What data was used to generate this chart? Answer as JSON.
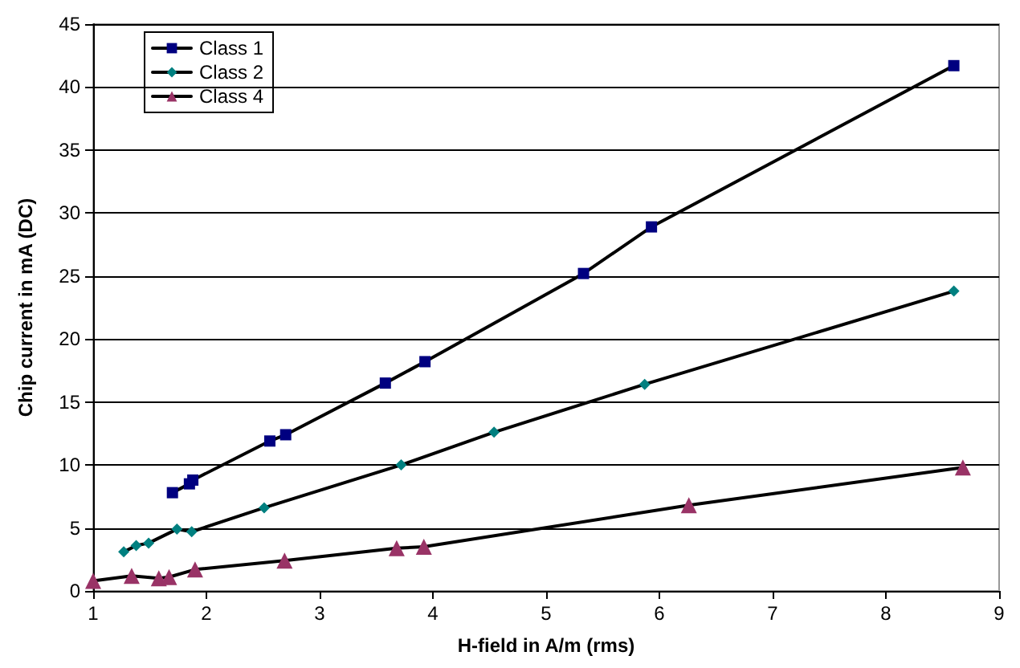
{
  "chart_data": {
    "type": "line",
    "xlabel": "H-field in A/m (rms)",
    "ylabel": "Chip current in mA (DC)",
    "xlim": [
      1,
      9
    ],
    "xticks": [
      1,
      2,
      3,
      4,
      5,
      6,
      7,
      8,
      9
    ],
    "ylim": [
      0,
      45
    ],
    "yticks": [
      0,
      5,
      10,
      15,
      20,
      25,
      30,
      35,
      40,
      45
    ],
    "grid": "y",
    "legend": "top left",
    "line_style": "solid",
    "series": [
      {
        "name": "Class 1",
        "color": "#000080",
        "marker": "square",
        "x": [
          1.7,
          1.85,
          1.88,
          2.56,
          2.7,
          3.58,
          3.93,
          5.33,
          5.93,
          8.6
        ],
        "values": [
          7.8,
          8.5,
          8.8,
          11.9,
          12.4,
          16.5,
          18.2,
          25.2,
          28.9,
          41.7
        ]
      },
      {
        "name": "Class 2",
        "color": "#008080",
        "marker": "diamond",
        "x": [
          1.27,
          1.38,
          1.49,
          1.74,
          1.87,
          2.51,
          3.72,
          4.54,
          5.87,
          8.6
        ],
        "values": [
          3.1,
          3.6,
          3.8,
          4.9,
          4.7,
          6.6,
          10.0,
          12.6,
          16.4,
          23.8
        ]
      },
      {
        "name": "Class 4",
        "color": "#993366",
        "marker": "triangle",
        "x": [
          1.0,
          1.34,
          1.58,
          1.67,
          1.9,
          2.69,
          3.68,
          3.92,
          6.26,
          8.68
        ],
        "values": [
          0.8,
          1.2,
          1.0,
          1.1,
          1.7,
          2.4,
          3.4,
          3.5,
          6.8,
          9.8
        ]
      }
    ]
  }
}
